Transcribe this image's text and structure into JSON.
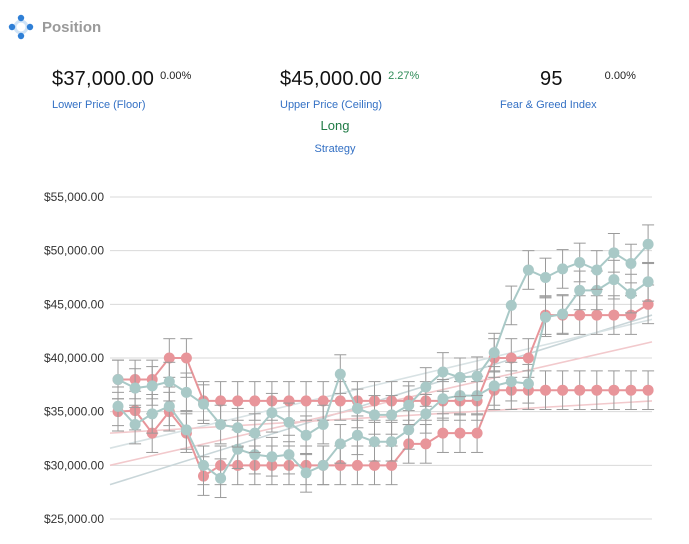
{
  "header": {
    "title": "Position",
    "icon": "position-dots-icon"
  },
  "metrics": {
    "floor": {
      "value": "$37,000.00",
      "pct": "0.00%",
      "label": "Lower Price (Floor)"
    },
    "ceiling": {
      "value": "$45,000.00",
      "pct": "2.27%",
      "label": "Upper Price (Ceiling)"
    },
    "fear_greed": {
      "value": "95",
      "pct": "0.00%",
      "label": "Fear & Greed Index"
    },
    "strategy": {
      "value": "Long",
      "label": "Strategy"
    }
  },
  "colors": {
    "accent": "#3370c4",
    "positive": "#2e8b57",
    "teal": "#a9c9c7",
    "pink": "#e8959a",
    "error_bar": "#999999"
  },
  "chart_data": {
    "type": "line",
    "ylim": [
      25000,
      55000
    ],
    "yticks": [
      25000,
      30000,
      35000,
      40000,
      45000,
      50000,
      55000
    ],
    "ytick_labels": [
      "$25,000.00",
      "$30,000.00",
      "$35,000.00",
      "$40,000.00",
      "$45,000.00",
      "$50,000.00",
      "$55,000.00"
    ],
    "x": [
      0,
      1,
      2,
      3,
      4,
      5,
      6,
      7,
      8,
      9,
      10,
      11,
      12,
      13,
      14,
      15,
      16,
      17,
      18,
      19,
      20,
      21,
      22,
      23,
      24,
      25,
      26,
      27,
      28,
      29,
      30,
      31
    ],
    "grid": "horizontal",
    "error_bar": 1800,
    "series": [
      {
        "color": "#e8959a",
        "values": [
          35000,
          35100,
          33000,
          35000,
          33000,
          29000,
          30000,
          30000,
          30000,
          30000,
          30000,
          30000,
          30000,
          30000,
          30000,
          30000,
          30000,
          32000,
          32000,
          33000,
          33000,
          33000,
          37000,
          37000,
          37000,
          37000,
          37000,
          37000,
          37000,
          37000,
          37000,
          37000
        ]
      },
      {
        "color": "#e8959a",
        "values": [
          38000,
          38000,
          38000,
          40000,
          40000,
          36000,
          36000,
          36000,
          36000,
          36000,
          36000,
          36000,
          36000,
          36000,
          36000,
          36000,
          36000,
          36000,
          36000,
          36000,
          36000,
          36000,
          40000,
          40000,
          40000,
          44000,
          44000,
          44000,
          44000,
          44000,
          44000,
          45000
        ]
      },
      {
        "color": "#a9c9c7",
        "values": [
          35500,
          33800,
          34800,
          35500,
          33300,
          30000,
          28800,
          31500,
          31000,
          30800,
          31000,
          29300,
          30000,
          32000,
          32800,
          32200,
          32200,
          33300,
          34800,
          36200,
          36500,
          36500,
          37400,
          37800,
          37600,
          43800,
          44100,
          46300,
          46300,
          47300,
          46000,
          47100
        ]
      },
      {
        "color": "#a9c9c7",
        "values": [
          38000,
          37200,
          37400,
          37800,
          36800,
          35700,
          33800,
          33500,
          33000,
          34900,
          34000,
          32800,
          33800,
          38500,
          35300,
          34700,
          34700,
          35600,
          37300,
          38700,
          38200,
          38300,
          40500,
          44900,
          48200,
          47500,
          48300,
          48900,
          48200,
          49800,
          48800,
          50600
        ]
      }
    ],
    "trendlines": [
      {
        "color": "#c9d6d9",
        "from": [
          0,
          28200
        ],
        "to": [
          31,
          44000
        ]
      },
      {
        "color": "#d8e2e4",
        "from": [
          0,
          31600
        ],
        "to": [
          31,
          43600
        ]
      },
      {
        "color": "#f2c9cc",
        "from": [
          0,
          30000
        ],
        "to": [
          31,
          41500
        ]
      },
      {
        "color": "#f2c9cc",
        "from": [
          0,
          33000
        ],
        "to": [
          31,
          36000
        ]
      }
    ]
  }
}
